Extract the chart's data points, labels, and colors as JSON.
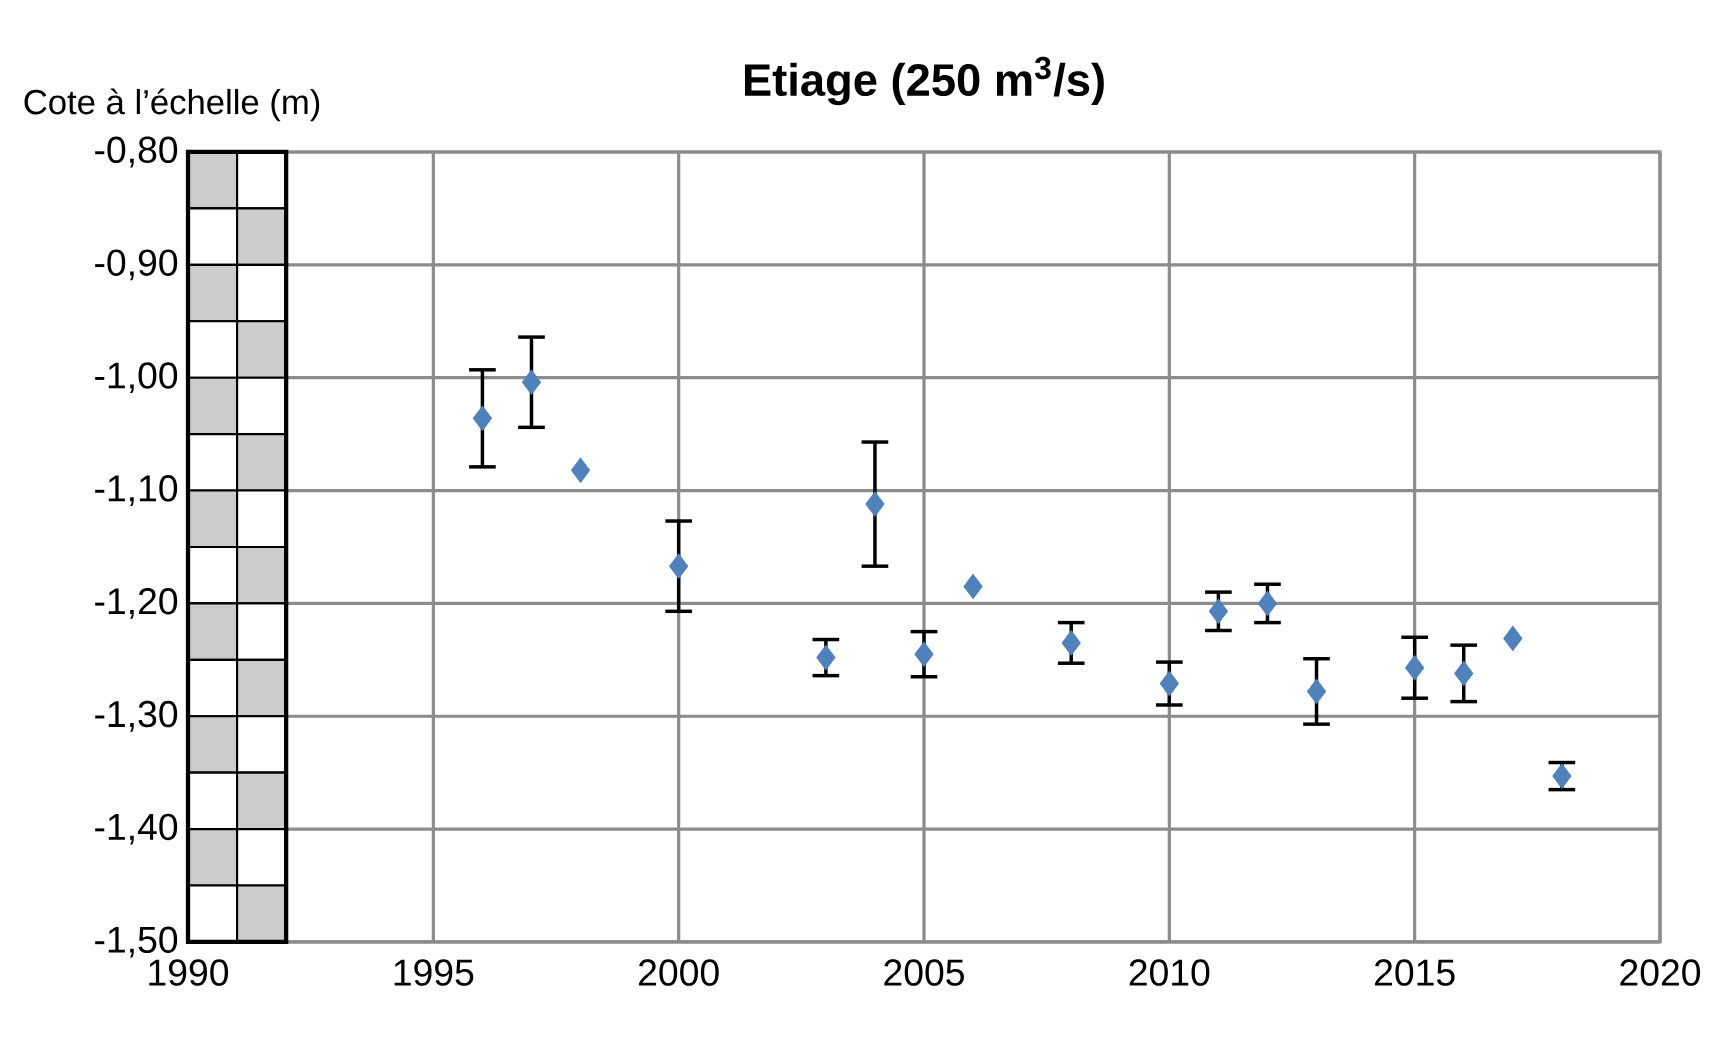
{
  "chart_data": {
    "type": "scatter",
    "title": "Etiage (250 m$^{3}$/s)",
    "ylabel": "Cote à l’échelle (m)",
    "x": [
      1996,
      1997,
      1998,
      2000,
      2003,
      2004,
      2005,
      2006,
      2008,
      2010,
      2011,
      2012,
      2013,
      2015,
      2016,
      2017,
      2018
    ],
    "values": [
      -1.036,
      -1.004,
      -1.082,
      -1.167,
      -1.248,
      -1.112,
      -1.245,
      -1.185,
      -1.235,
      -1.271,
      -1.207,
      -1.2,
      -1.278,
      -1.257,
      -1.262,
      -1.231,
      -1.353
    ],
    "errors": [
      0.043,
      0.04,
      null,
      0.04,
      0.016,
      0.055,
      0.02,
      null,
      0.018,
      0.019,
      0.017,
      0.017,
      0.029,
      0.027,
      0.025,
      null,
      0.012
    ],
    "color": "#4f81bd",
    "marker": "diamond",
    "grid": true,
    "xlim": [
      1990,
      2020
    ],
    "xticks": [
      1990,
      1995,
      2000,
      2005,
      2010,
      2015,
      2020
    ],
    "ylim": [
      -1.5,
      -0.8
    ],
    "yticks": [
      {
        "value": -1.5,
        "label": "-1,50"
      },
      {
        "value": -1.4,
        "label": "-1,40"
      },
      {
        "value": -1.3,
        "label": "-1,30"
      },
      {
        "value": -1.2,
        "label": "-1,20"
      },
      {
        "value": -1.1,
        "label": "-1,10"
      },
      {
        "value": -1.0,
        "label": "-1,00"
      },
      {
        "value": -0.9,
        "label": "-0,90"
      },
      {
        "value": -0.8,
        "label": "-0,80"
      }
    ]
  }
}
